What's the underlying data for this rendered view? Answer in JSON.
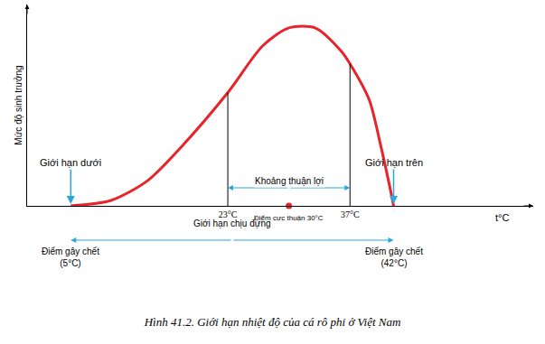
{
  "chart_data": {
    "type": "line",
    "title": "Hình 41.2. Giới hạn nhiệt độ của cá rô phi ở Việt Nam",
    "x_label": "t°C",
    "y_label": "Mức độ sinh trưởng",
    "x": [
      5,
      9.6,
      13.8,
      17.9,
      23,
      27,
      30,
      33,
      36,
      37,
      39.2,
      40.5,
      41.5,
      42
    ],
    "values": [
      0,
      3,
      14,
      34,
      63,
      89,
      99,
      99,
      86,
      79,
      59,
      34,
      12,
      0
    ],
    "color": "#e8232a",
    "xlim": [
      0,
      58
    ],
    "ylim": [
      0,
      112
    ],
    "xticks": [
      {
        "value": 23,
        "label": "23°C"
      },
      {
        "value": 37,
        "label": "37°C"
      }
    ],
    "tick_labels": "x",
    "grid": false,
    "limits": [
      {
        "label": "Giới hạn dưới",
        "x": 5,
        "lethal": [
          "Điểm gây chết",
          "(5°C)"
        ]
      },
      {
        "label": "Giới hạn trên",
        "x": 42,
        "lethal": [
          "Điểm gây chết",
          "(42°C)"
        ]
      }
    ],
    "favorable_range": {
      "label": "Khoảng thuận lợi",
      "from": 23,
      "to": 37
    },
    "optimum": {
      "label": "Điểm cực thuận 30°C",
      "x": 30
    },
    "tolerance_range": {
      "label": "Giới hạn chịu đựng",
      "from": 5,
      "to": 42
    }
  }
}
